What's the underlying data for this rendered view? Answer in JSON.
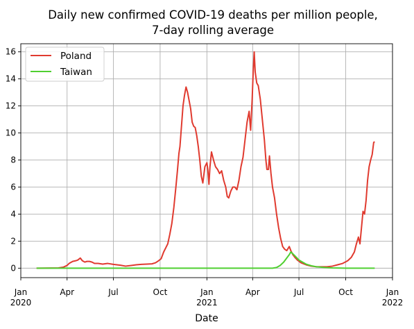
{
  "chart_data": {
    "type": "line",
    "title": "Daily new confirmed COVID-19 deaths per million people,",
    "subtitle": "7-day rolling average",
    "xlabel": "Date",
    "ylabel": "",
    "xlim": [
      "2020-01-01",
      "2022-01-01"
    ],
    "ylim": [
      -0.7,
      16.6
    ],
    "grid": true,
    "legend_position": "top-left",
    "x_ticks": [
      {
        "date": "2020-01-01",
        "label": "Jan",
        "year": "2020"
      },
      {
        "date": "2020-04-01",
        "label": "Apr",
        "year": ""
      },
      {
        "date": "2020-07-01",
        "label": "Jul",
        "year": ""
      },
      {
        "date": "2020-10-01",
        "label": "Oct",
        "year": ""
      },
      {
        "date": "2021-01-01",
        "label": "Jan",
        "year": "2021"
      },
      {
        "date": "2021-04-01",
        "label": "Apr",
        "year": ""
      },
      {
        "date": "2021-07-01",
        "label": "Jul",
        "year": ""
      },
      {
        "date": "2021-10-01",
        "label": "Oct",
        "year": ""
      },
      {
        "date": "2022-01-01",
        "label": "Jan",
        "year": "2022"
      }
    ],
    "y_ticks": [
      0,
      2,
      4,
      6,
      8,
      10,
      12,
      14,
      16
    ],
    "series": [
      {
        "name": "Poland",
        "color": "#e03a2f",
        "points": [
          [
            "2020-02-01",
            0
          ],
          [
            "2020-03-15",
            0.02
          ],
          [
            "2020-03-25",
            0.08
          ],
          [
            "2020-04-01",
            0.2
          ],
          [
            "2020-04-05",
            0.35
          ],
          [
            "2020-04-12",
            0.5
          ],
          [
            "2020-04-18",
            0.55
          ],
          [
            "2020-04-22",
            0.6
          ],
          [
            "2020-04-27",
            0.75
          ],
          [
            "2020-05-01",
            0.55
          ],
          [
            "2020-05-06",
            0.45
          ],
          [
            "2020-05-10",
            0.5
          ],
          [
            "2020-05-15",
            0.5
          ],
          [
            "2020-05-20",
            0.45
          ],
          [
            "2020-05-25",
            0.35
          ],
          [
            "2020-06-01",
            0.35
          ],
          [
            "2020-06-10",
            0.3
          ],
          [
            "2020-06-20",
            0.35
          ],
          [
            "2020-07-01",
            0.28
          ],
          [
            "2020-07-15",
            0.22
          ],
          [
            "2020-07-25",
            0.15
          ],
          [
            "2020-08-05",
            0.2
          ],
          [
            "2020-08-15",
            0.25
          ],
          [
            "2020-08-25",
            0.28
          ],
          [
            "2020-09-05",
            0.3
          ],
          [
            "2020-09-15",
            0.32
          ],
          [
            "2020-09-22",
            0.4
          ],
          [
            "2020-09-28",
            0.55
          ],
          [
            "2020-10-03",
            0.7
          ],
          [
            "2020-10-08",
            1.2
          ],
          [
            "2020-10-12",
            1.5
          ],
          [
            "2020-10-16",
            1.8
          ],
          [
            "2020-10-20",
            2.5
          ],
          [
            "2020-10-24",
            3.3
          ],
          [
            "2020-10-28",
            4.5
          ],
          [
            "2020-11-01",
            6.0
          ],
          [
            "2020-11-04",
            7.2
          ],
          [
            "2020-11-07",
            8.5
          ],
          [
            "2020-11-09",
            9.0
          ],
          [
            "2020-11-12",
            10.5
          ],
          [
            "2020-11-15",
            12.0
          ],
          [
            "2020-11-18",
            12.8
          ],
          [
            "2020-11-21",
            13.4
          ],
          [
            "2020-11-24",
            13.0
          ],
          [
            "2020-11-27",
            12.4
          ],
          [
            "2020-11-30",
            11.8
          ],
          [
            "2020-12-03",
            10.8
          ],
          [
            "2020-12-06",
            10.5
          ],
          [
            "2020-12-09",
            10.4
          ],
          [
            "2020-12-12",
            9.8
          ],
          [
            "2020-12-15",
            9.0
          ],
          [
            "2020-12-18",
            8.0
          ],
          [
            "2020-12-21",
            6.8
          ],
          [
            "2020-12-24",
            6.3
          ],
          [
            "2020-12-28",
            7.5
          ],
          [
            "2021-01-01",
            7.8
          ],
          [
            "2021-01-03",
            7.2
          ],
          [
            "2021-01-05",
            6.2
          ],
          [
            "2021-01-07",
            7.5
          ],
          [
            "2021-01-10",
            8.6
          ],
          [
            "2021-01-14",
            8.0
          ],
          [
            "2021-01-18",
            7.5
          ],
          [
            "2021-01-22",
            7.3
          ],
          [
            "2021-01-26",
            7.0
          ],
          [
            "2021-01-30",
            7.2
          ],
          [
            "2021-02-03",
            6.5
          ],
          [
            "2021-02-07",
            6.0
          ],
          [
            "2021-02-10",
            5.3
          ],
          [
            "2021-02-13",
            5.2
          ],
          [
            "2021-02-17",
            5.7
          ],
          [
            "2021-02-21",
            6.0
          ],
          [
            "2021-02-25",
            6.0
          ],
          [
            "2021-03-01",
            5.8
          ],
          [
            "2021-03-05",
            6.5
          ],
          [
            "2021-03-09",
            7.5
          ],
          [
            "2021-03-13",
            8.2
          ],
          [
            "2021-03-17",
            9.5
          ],
          [
            "2021-03-21",
            10.8
          ],
          [
            "2021-03-25",
            11.6
          ],
          [
            "2021-03-28",
            10.2
          ],
          [
            "2021-03-31",
            12.5
          ],
          [
            "2021-04-02",
            14.5
          ],
          [
            "2021-04-04",
            16.0
          ],
          [
            "2021-04-06",
            14.5
          ],
          [
            "2021-04-09",
            13.7
          ],
          [
            "2021-04-12",
            13.5
          ],
          [
            "2021-04-16",
            12.5
          ],
          [
            "2021-04-20",
            11.0
          ],
          [
            "2021-04-24",
            9.5
          ],
          [
            "2021-04-27",
            8.0
          ],
          [
            "2021-04-29",
            7.3
          ],
          [
            "2021-05-02",
            7.3
          ],
          [
            "2021-05-04",
            8.3
          ],
          [
            "2021-05-07",
            7.0
          ],
          [
            "2021-05-10",
            6.0
          ],
          [
            "2021-05-14",
            5.2
          ],
          [
            "2021-05-18",
            4.0
          ],
          [
            "2021-05-22",
            3.0
          ],
          [
            "2021-05-26",
            2.2
          ],
          [
            "2021-05-30",
            1.6
          ],
          [
            "2021-06-03",
            1.4
          ],
          [
            "2021-06-07",
            1.3
          ],
          [
            "2021-06-12",
            1.6
          ],
          [
            "2021-06-15",
            1.3
          ],
          [
            "2021-06-19",
            1.0
          ],
          [
            "2021-06-23",
            0.8
          ],
          [
            "2021-06-28",
            0.6
          ],
          [
            "2021-07-05",
            0.4
          ],
          [
            "2021-07-15",
            0.25
          ],
          [
            "2021-07-25",
            0.15
          ],
          [
            "2021-08-05",
            0.1
          ],
          [
            "2021-08-15",
            0.1
          ],
          [
            "2021-08-25",
            0.1
          ],
          [
            "2021-09-05",
            0.15
          ],
          [
            "2021-09-15",
            0.25
          ],
          [
            "2021-09-25",
            0.35
          ],
          [
            "2021-10-05",
            0.55
          ],
          [
            "2021-10-12",
            0.8
          ],
          [
            "2021-10-18",
            1.2
          ],
          [
            "2021-10-22",
            1.8
          ],
          [
            "2021-10-26",
            2.3
          ],
          [
            "2021-10-29",
            1.8
          ],
          [
            "2021-11-01",
            3.0
          ],
          [
            "2021-11-04",
            4.2
          ],
          [
            "2021-11-07",
            4.0
          ],
          [
            "2021-11-10",
            5.0
          ],
          [
            "2021-11-13",
            6.5
          ],
          [
            "2021-11-16",
            7.5
          ],
          [
            "2021-11-19",
            8.0
          ],
          [
            "2021-11-22",
            8.4
          ],
          [
            "2021-11-25",
            9.3
          ],
          [
            "2021-11-27",
            9.35
          ]
        ]
      },
      {
        "name": "Taiwan",
        "color": "#4fcf30",
        "points": [
          [
            "2020-02-01",
            0
          ],
          [
            "2020-06-01",
            0
          ],
          [
            "2020-10-01",
            0
          ],
          [
            "2021-01-01",
            0
          ],
          [
            "2021-05-10",
            0
          ],
          [
            "2021-05-18",
            0.05
          ],
          [
            "2021-05-25",
            0.2
          ],
          [
            "2021-06-01",
            0.45
          ],
          [
            "2021-06-07",
            0.75
          ],
          [
            "2021-06-12",
            1.0
          ],
          [
            "2021-06-15",
            1.2
          ],
          [
            "2021-06-18",
            1.1
          ],
          [
            "2021-06-22",
            0.95
          ],
          [
            "2021-06-26",
            0.8
          ],
          [
            "2021-07-01",
            0.6
          ],
          [
            "2021-07-08",
            0.45
          ],
          [
            "2021-07-15",
            0.3
          ],
          [
            "2021-07-25",
            0.18
          ],
          [
            "2021-08-05",
            0.1
          ],
          [
            "2021-08-20",
            0.05
          ],
          [
            "2021-09-05",
            0.02
          ],
          [
            "2021-10-01",
            0
          ],
          [
            "2021-11-27",
            0
          ]
        ]
      }
    ]
  }
}
